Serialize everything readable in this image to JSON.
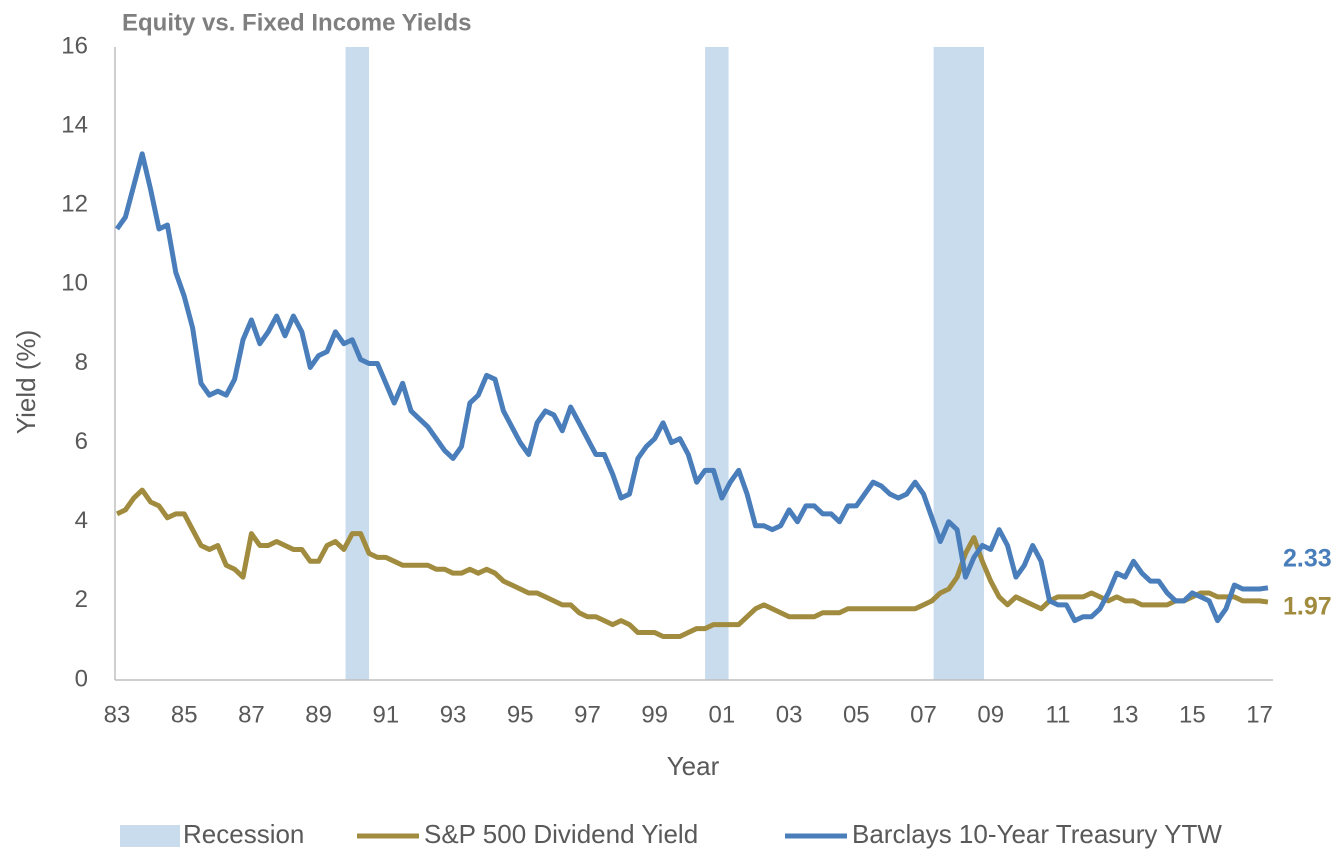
{
  "chart_data": {
    "type": "line",
    "title": "Equity vs. Fixed Income Yields",
    "x_label": "Year",
    "y_label": "Yield (%)",
    "xlim": [
      1983,
      2017.4
    ],
    "ylim": [
      0,
      16
    ],
    "yticks": [
      0,
      2,
      4,
      6,
      8,
      10,
      12,
      14,
      16
    ],
    "xticks": [
      {
        "value": 1983,
        "label": "83"
      },
      {
        "value": 1985,
        "label": "85"
      },
      {
        "value": 1987,
        "label": "87"
      },
      {
        "value": 1989,
        "label": "89"
      },
      {
        "value": 1991,
        "label": "91"
      },
      {
        "value": 1993,
        "label": "93"
      },
      {
        "value": 1995,
        "label": "95"
      },
      {
        "value": 1997,
        "label": "97"
      },
      {
        "value": 1999,
        "label": "99"
      },
      {
        "value": 2001,
        "label": "01"
      },
      {
        "value": 2003,
        "label": "03"
      },
      {
        "value": 2005,
        "label": "05"
      },
      {
        "value": 2007,
        "label": "07"
      },
      {
        "value": 2009,
        "label": "09"
      },
      {
        "value": 2011,
        "label": "11"
      },
      {
        "value": 2013,
        "label": "13"
      },
      {
        "value": 2015,
        "label": "15"
      },
      {
        "value": 2017,
        "label": "17"
      }
    ],
    "grid": false,
    "legend": "bottom",
    "recession": {
      "name": "Recession",
      "color": "#c9dcee",
      "spans": [
        [
          1989.8,
          1990.5
        ],
        [
          2000.5,
          2001.2
        ],
        [
          2007.3,
          2008.8
        ]
      ]
    },
    "x": [
      1983,
      1983.25,
      1983.5,
      1983.75,
      1984,
      1984.25,
      1984.5,
      1984.75,
      1985,
      1985.25,
      1985.5,
      1985.75,
      1986,
      1986.25,
      1986.5,
      1986.75,
      1987,
      1987.25,
      1987.5,
      1987.75,
      1988,
      1988.25,
      1988.5,
      1988.75,
      1989,
      1989.25,
      1989.5,
      1989.75,
      1990,
      1990.25,
      1990.5,
      1990.75,
      1991,
      1991.25,
      1991.5,
      1991.75,
      1992,
      1992.25,
      1992.5,
      1992.75,
      1993,
      1993.25,
      1993.5,
      1993.75,
      1994,
      1994.25,
      1994.5,
      1994.75,
      1995,
      1995.25,
      1995.5,
      1995.75,
      1996,
      1996.25,
      1996.5,
      1996.75,
      1997,
      1997.25,
      1997.5,
      1997.75,
      1998,
      1998.25,
      1998.5,
      1998.75,
      1999,
      1999.25,
      1999.5,
      1999.75,
      2000,
      2000.25,
      2000.5,
      2000.75,
      2001,
      2001.25,
      2001.5,
      2001.75,
      2002,
      2002.25,
      2002.5,
      2002.75,
      2003,
      2003.25,
      2003.5,
      2003.75,
      2004,
      2004.25,
      2004.5,
      2004.75,
      2005,
      2005.25,
      2005.5,
      2005.75,
      2006,
      2006.25,
      2006.5,
      2006.75,
      2007,
      2007.25,
      2007.5,
      2007.75,
      2008,
      2008.25,
      2008.5,
      2008.75,
      2009,
      2009.25,
      2009.5,
      2009.75,
      2010,
      2010.25,
      2010.5,
      2010.75,
      2011,
      2011.25,
      2011.5,
      2011.75,
      2012,
      2012.25,
      2012.5,
      2012.75,
      2013,
      2013.25,
      2013.5,
      2013.75,
      2014,
      2014.25,
      2014.5,
      2014.75,
      2015,
      2015.25,
      2015.5,
      2015.75,
      2016,
      2016.25,
      2016.5,
      2016.75,
      2017,
      2017.25
    ],
    "series": [
      {
        "name": "S&P 500 Dividend Yield",
        "color": "#a08b3e",
        "values": [
          4.2,
          4.3,
          4.6,
          4.8,
          4.5,
          4.4,
          4.1,
          4.2,
          4.2,
          3.8,
          3.4,
          3.3,
          3.4,
          2.9,
          2.8,
          2.6,
          3.7,
          3.4,
          3.4,
          3.5,
          3.4,
          3.3,
          3.3,
          3.0,
          3.0,
          3.4,
          3.5,
          3.3,
          3.7,
          3.7,
          3.2,
          3.1,
          3.1,
          3.0,
          2.9,
          2.9,
          2.9,
          2.9,
          2.8,
          2.8,
          2.7,
          2.7,
          2.8,
          2.7,
          2.8,
          2.7,
          2.5,
          2.4,
          2.3,
          2.2,
          2.2,
          2.1,
          2.0,
          1.9,
          1.9,
          1.7,
          1.6,
          1.6,
          1.5,
          1.4,
          1.5,
          1.4,
          1.2,
          1.2,
          1.2,
          1.1,
          1.1,
          1.1,
          1.2,
          1.3,
          1.3,
          1.4,
          1.4,
          1.4,
          1.4,
          1.6,
          1.8,
          1.9,
          1.8,
          1.7,
          1.6,
          1.6,
          1.6,
          1.6,
          1.7,
          1.7,
          1.7,
          1.8,
          1.8,
          1.8,
          1.8,
          1.8,
          1.8,
          1.8,
          1.8,
          1.8,
          1.9,
          2.0,
          2.2,
          2.3,
          2.6,
          3.2,
          3.6,
          3.0,
          2.5,
          2.1,
          1.9,
          2.1,
          2.0,
          1.9,
          1.8,
          2.0,
          2.1,
          2.1,
          2.1,
          2.1,
          2.2,
          2.1,
          2.0,
          2.1,
          2.0,
          2.0,
          1.9,
          1.9,
          1.9,
          1.9,
          2.0,
          2.0,
          2.1,
          2.2,
          2.2,
          2.1,
          2.1,
          2.1,
          2.0,
          2.0,
          2.0,
          1.97
        ]
      },
      {
        "name": "Barclays 10-Year Treasury YTW",
        "color": "#4a7ebb",
        "values": [
          11.4,
          11.7,
          12.5,
          13.3,
          12.4,
          11.4,
          11.5,
          10.3,
          9.7,
          8.9,
          7.5,
          7.2,
          7.3,
          7.2,
          7.6,
          8.6,
          9.1,
          8.5,
          8.8,
          9.2,
          8.7,
          9.2,
          8.8,
          7.9,
          8.2,
          8.3,
          8.8,
          8.5,
          8.6,
          8.1,
          8.0,
          8.0,
          7.5,
          7.0,
          7.5,
          6.8,
          6.6,
          6.4,
          6.1,
          5.8,
          5.6,
          5.9,
          7.0,
          7.2,
          7.7,
          7.6,
          6.8,
          6.4,
          6.0,
          5.7,
          6.5,
          6.8,
          6.7,
          6.3,
          6.9,
          6.5,
          6.1,
          5.7,
          5.7,
          5.2,
          4.6,
          4.7,
          5.6,
          5.9,
          6.1,
          6.5,
          6.0,
          6.1,
          5.7,
          5.0,
          5.3,
          5.3,
          4.6,
          5.0,
          5.3,
          4.7,
          3.9,
          3.9,
          3.8,
          3.9,
          4.3,
          4.0,
          4.4,
          4.4,
          4.2,
          4.2,
          4.0,
          4.4,
          4.4,
          4.7,
          5.0,
          4.9,
          4.7,
          4.6,
          4.7,
          5.0,
          4.7,
          4.1,
          3.5,
          4.0,
          3.8,
          2.6,
          3.1,
          3.4,
          3.3,
          3.8,
          3.4,
          2.6,
          2.9,
          3.4,
          3.0,
          2.0,
          1.9,
          1.9,
          1.5,
          1.6,
          1.6,
          1.8,
          2.2,
          2.7,
          2.6,
          3.0,
          2.7,
          2.5,
          2.5,
          2.2,
          2.0,
          2.0,
          2.2,
          2.1,
          2.0,
          1.5,
          1.8,
          2.4,
          2.3,
          2.3,
          2.3,
          2.33
        ]
      }
    ]
  }
}
